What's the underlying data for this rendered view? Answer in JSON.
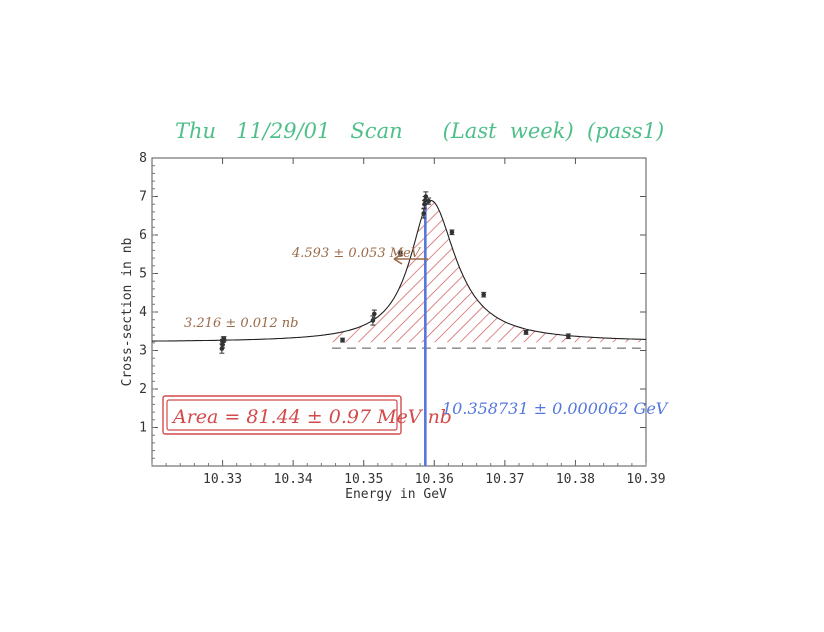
{
  "colors": {
    "title": "#4fbf8a",
    "blue_line": "#5577dd",
    "red_note": "#d24a4a",
    "brown_note": "#9a6a4a",
    "hatch": "#cc5555",
    "curve": "#222222",
    "points": "#333333"
  },
  "header": {
    "title": "Thu   11/29/01   Scan      (Last  week)  (pass1)"
  },
  "annotations": {
    "peak_height": "4.593 ± 0.053 MeV",
    "baseline": "3.216 ± 0.012 nb",
    "area": "Area = 81.44 ± 0.97 MeV nb",
    "mass": "10.358731 ± 0.000062 GeV"
  },
  "chart_data": {
    "type": "scatter",
    "xlabel": "Energy in GeV",
    "ylabel": "Cross-section in nb",
    "xlim": [
      10.32,
      10.39
    ],
    "ylim": [
      0,
      8
    ],
    "xticks": [
      "10.33",
      "10.34",
      "10.35",
      "10.36",
      "10.37",
      "10.38",
      "10.39"
    ],
    "yticks": [
      "1",
      "2",
      "3",
      "4",
      "5",
      "6",
      "7",
      "8"
    ],
    "grid": false,
    "points": [
      {
        "x": 10.3299,
        "y": 3.05,
        "err": 0.12
      },
      {
        "x": 10.33,
        "y": 3.15,
        "err": 0.08
      },
      {
        "x": 10.33,
        "y": 3.22,
        "err": 0.07
      },
      {
        "x": 10.3301,
        "y": 3.28,
        "err": 0.07
      },
      {
        "x": 10.3302,
        "y": 3.3,
        "err": 0.06
      },
      {
        "x": 10.347,
        "y": 3.27,
        "err": 0.05
      },
      {
        "x": 10.3513,
        "y": 3.78,
        "err": 0.12
      },
      {
        "x": 10.3515,
        "y": 3.95,
        "err": 0.1
      },
      {
        "x": 10.3552,
        "y": 5.52,
        "err": 0.06
      },
      {
        "x": 10.3585,
        "y": 6.56,
        "err": 0.12
      },
      {
        "x": 10.3586,
        "y": 6.8,
        "err": 0.1
      },
      {
        "x": 10.3587,
        "y": 6.9,
        "err": 0.1
      },
      {
        "x": 10.3588,
        "y": 7.0,
        "err": 0.12
      },
      {
        "x": 10.3592,
        "y": 6.88,
        "err": 0.08
      },
      {
        "x": 10.3625,
        "y": 6.07,
        "err": 0.06
      },
      {
        "x": 10.367,
        "y": 4.45,
        "err": 0.06
      },
      {
        "x": 10.373,
        "y": 3.47,
        "err": 0.05
      },
      {
        "x": 10.379,
        "y": 3.37,
        "err": 0.06
      }
    ],
    "fit": {
      "baseline": 3.216,
      "peak_x": 10.3595,
      "peak_y": 6.9,
      "width_left": 0.0035,
      "width_right": 0.0043
    },
    "resonance_x": 10.358731
  }
}
